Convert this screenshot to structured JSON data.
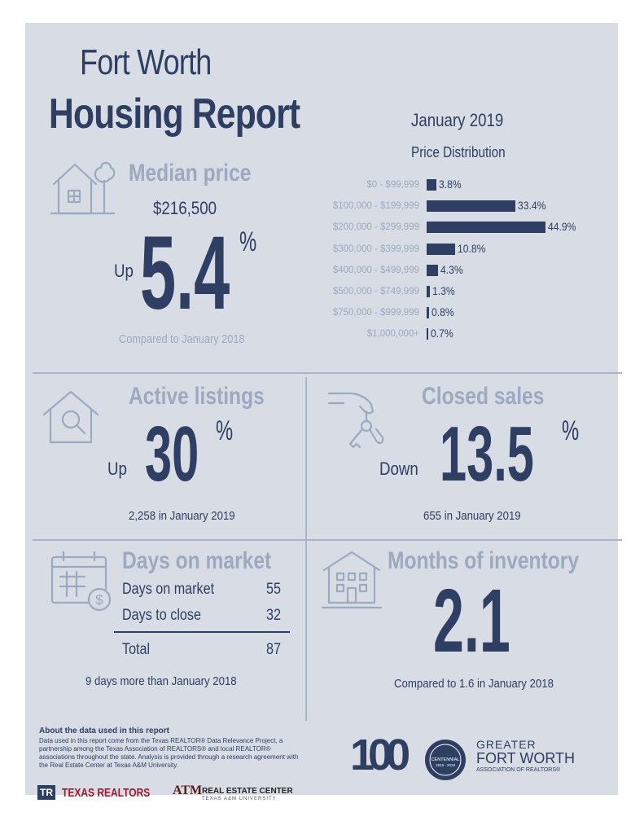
{
  "header": {
    "title_line1": "Fort Worth",
    "title_line2": "Housing Report",
    "month": "January 2019"
  },
  "median_price": {
    "heading": "Median price",
    "value": "$216,500",
    "direction": "Up",
    "change": "5.4",
    "unit": "%",
    "note": "Compared to January 2018"
  },
  "price_distribution": {
    "title": "Price Distribution",
    "buckets": [
      {
        "range": "$0 - $99,999",
        "percent": 3.8,
        "label": "3.8%"
      },
      {
        "range": "$100,000 - $199,999",
        "percent": 33.4,
        "label": "33.4%"
      },
      {
        "range": "$200,000 - $299,999",
        "percent": 44.9,
        "label": "44.9%"
      },
      {
        "range": "$300,000 - $399,999",
        "percent": 10.8,
        "label": "10.8%"
      },
      {
        "range": "$400,000 - $499,999",
        "percent": 4.3,
        "label": "4.3%"
      },
      {
        "range": "$500,000 - $749,999",
        "percent": 1.3,
        "label": "1.3%"
      },
      {
        "range": "$750,000 - $999,999",
        "percent": 0.8,
        "label": "0.8%"
      },
      {
        "range": "$1,000,000+",
        "percent": 0.7,
        "label": "0.7%"
      }
    ]
  },
  "chart_data": {
    "type": "bar",
    "orientation": "horizontal",
    "title": "Price Distribution",
    "categories": [
      "$0 - $99,999",
      "$100,000 - $199,999",
      "$200,000 - $299,999",
      "$300,000 - $399,999",
      "$400,000 - $499,999",
      "$500,000 - $749,999",
      "$750,000 - $999,999",
      "$1,000,000+"
    ],
    "values": [
      3.8,
      33.4,
      44.9,
      10.8,
      4.3,
      1.3,
      0.8,
      0.7
    ],
    "unit": "%"
  },
  "active_listings": {
    "heading": "Active listings",
    "direction": "Up",
    "change": "30",
    "unit": "%",
    "note": "2,258 in January 2019"
  },
  "closed_sales": {
    "heading": "Closed sales",
    "direction": "Down",
    "change": "13.5",
    "unit": "%",
    "note": "655 in January 2019"
  },
  "days_on_market": {
    "heading": "Days on market",
    "rows": [
      {
        "label": "Days on market",
        "value": "55"
      },
      {
        "label": "Days to close",
        "value": "32"
      }
    ],
    "total_label": "Total",
    "total_value": "87",
    "note": "9 days more than January 2018"
  },
  "months_inventory": {
    "heading": "Months of inventory",
    "value": "2.1",
    "note": "Compared to 1.6 in January 2018"
  },
  "about": {
    "heading": "About the data used in this report",
    "text": "Data used in this report come from the Texas REALTOR® Data Relevance Project, a partnership among the Texas Association of REALTORS® and local REALTOR® associations throughout the state. Analysis is provided through a research agreement with the Real Estate Center at Texas A&M University."
  },
  "logos": {
    "texas_realtors": "TEXAS REALTORS",
    "tamu": "ATM",
    "rec_line1": "REAL ESTATE CENTER",
    "rec_line2": "TEXAS A&M UNIVERSITY",
    "gfw_line1": "GREATER",
    "gfw_line2": "FORT WORTH",
    "gfw_line3": "ASSOCIATION OF REALTORS®",
    "centennial": "100",
    "centennial_seal": "CENTENNIAL",
    "centennial_years": "1918 - 2018"
  }
}
